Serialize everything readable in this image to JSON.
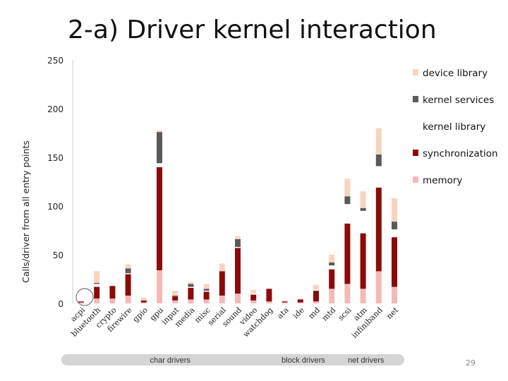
{
  "slide": {
    "title": "2-a) Driver kernel interaction",
    "page_number": "29"
  },
  "chart_data": {
    "type": "bar",
    "stacked": true,
    "title": "",
    "xlabel": "",
    "ylabel": "Calls/driver from all entry points",
    "ylim": [
      0,
      250
    ],
    "yticks": [
      0,
      50,
      100,
      150,
      200,
      250
    ],
    "grid": false,
    "legend_position": "right",
    "categories": [
      "acpi",
      "bluetooth",
      "crypto",
      "firewire",
      "gpio",
      "gpu",
      "input",
      "media",
      "misc",
      "serial",
      "sound",
      "video",
      "watchdog",
      "ata",
      "ide",
      "md",
      "mtd",
      "scsi",
      "atm",
      "infiniband",
      "net"
    ],
    "series": [
      {
        "name": "memory",
        "color": "#f4b8b8",
        "values": [
          1,
          5,
          5,
          8,
          1,
          34,
          3,
          4,
          4,
          8,
          10,
          3,
          2,
          1,
          1,
          2,
          15,
          20,
          15,
          33,
          17
        ]
      },
      {
        "name": "synchronization",
        "color": "#8b0a0a",
        "values": [
          1,
          12,
          13,
          22,
          2,
          106,
          4,
          12,
          8,
          25,
          47,
          6,
          13,
          1,
          3,
          11,
          20,
          62,
          57,
          86,
          51
        ]
      },
      {
        "name": "kernel library",
        "color": "#ffffff",
        "values": [
          0,
          3,
          1,
          1,
          0,
          4,
          0,
          1,
          1,
          0,
          1,
          1,
          0,
          0,
          0,
          1,
          4,
          20,
          23,
          22,
          8
        ]
      },
      {
        "name": "kernel services",
        "color": "#5a5a5a",
        "values": [
          0,
          1,
          0,
          5,
          0,
          32,
          1,
          3,
          2,
          0,
          8,
          0,
          0,
          0,
          0,
          0,
          3,
          8,
          3,
          12,
          8
        ]
      },
      {
        "name": "device library",
        "color": "#f8d4c0",
        "values": [
          0,
          12,
          0,
          4,
          3,
          2,
          5,
          2,
          5,
          8,
          3,
          4,
          0,
          1,
          1,
          5,
          8,
          18,
          17,
          27,
          24
        ]
      }
    ],
    "groups": [
      {
        "label": "char drivers",
        "from": "acpi",
        "to": "watchdog"
      },
      {
        "label": "block drivers",
        "from": "ata",
        "to": "mtd"
      },
      {
        "label": "net drivers",
        "from": "scsi",
        "to": "net"
      }
    ]
  }
}
